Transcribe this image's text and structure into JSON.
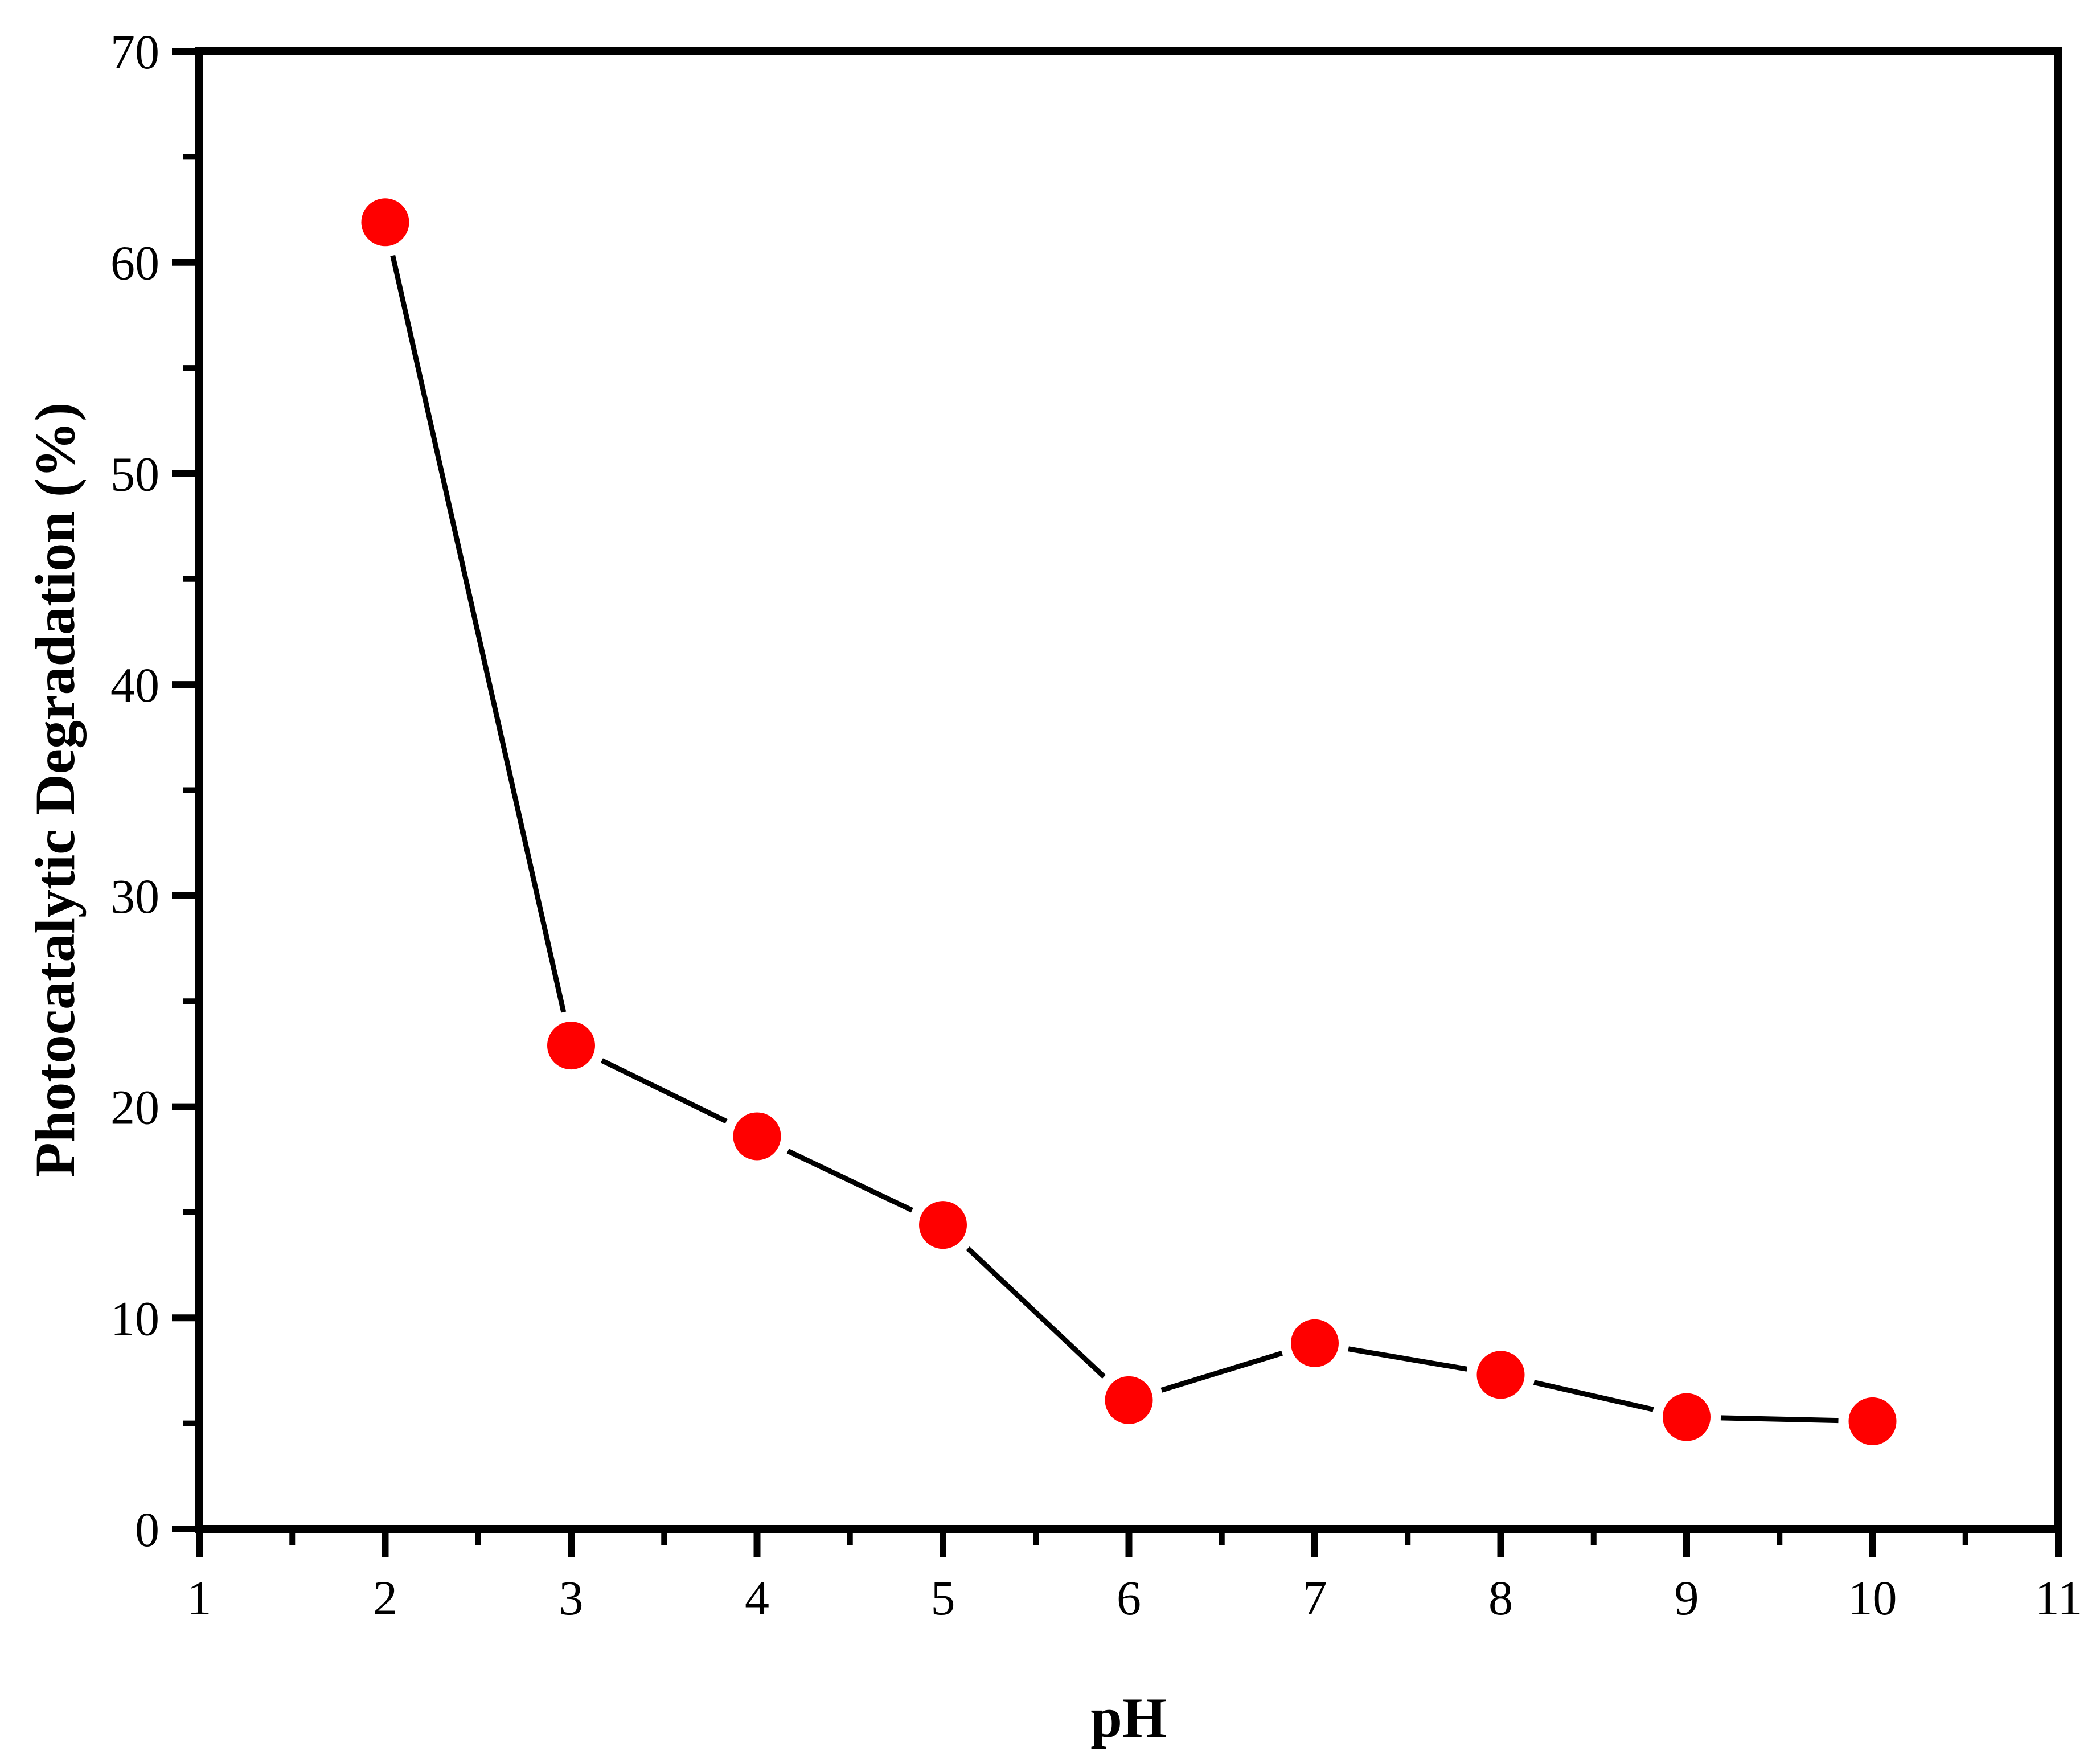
{
  "chart_data": {
    "type": "line",
    "title": "",
    "xlabel": "pH",
    "ylabel": "Photocatalytic Degradation (%)",
    "xlim": [
      1,
      11
    ],
    "ylim": [
      0,
      70
    ],
    "x_ticks": [
      1,
      2,
      3,
      4,
      5,
      6,
      7,
      8,
      9,
      10,
      11
    ],
    "y_ticks": [
      0,
      10,
      20,
      30,
      40,
      50,
      60,
      70
    ],
    "grid": false,
    "legend": "none",
    "series": [
      {
        "x": [
          2,
          3,
          4,
          5,
          6,
          7,
          8,
          9,
          10
        ],
        "y": [
          61.9,
          22.9,
          18.6,
          14.4,
          6.1,
          8.8,
          7.3,
          5.3,
          5.1
        ]
      }
    ],
    "colors": {
      "marker": "#ff0000",
      "line": "#000000",
      "axes": "#000000"
    }
  }
}
